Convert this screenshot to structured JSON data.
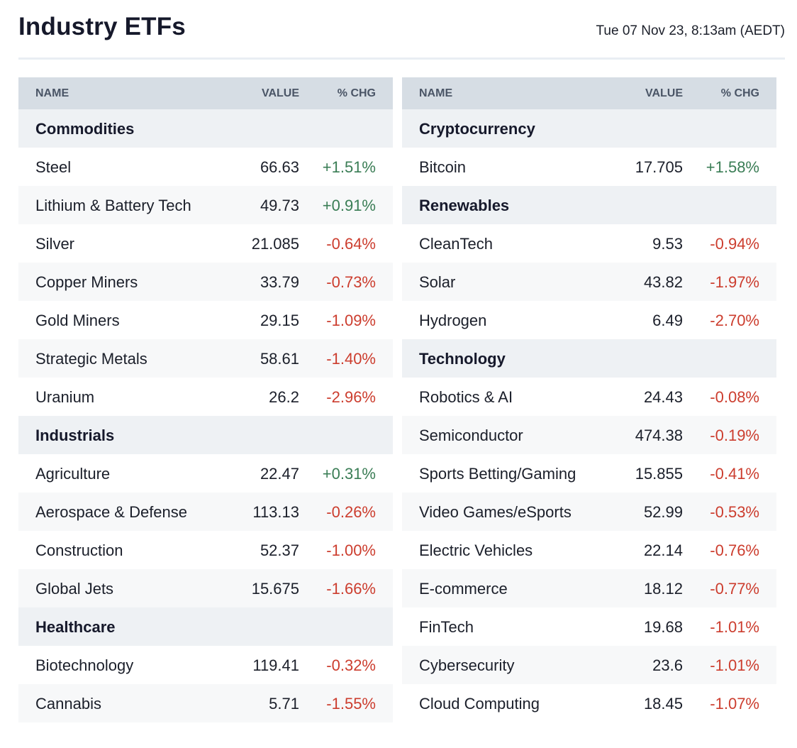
{
  "header": {
    "title": "Industry ETFs",
    "timestamp": "Tue 07 Nov 23, 8:13am (AEDT)"
  },
  "colors": {
    "positive": "#3a7d55",
    "negative": "#cc3d2e",
    "header_bg": "#d6dde4",
    "group_bg": "#eef1f4"
  },
  "columns": {
    "name": "NAME",
    "value": "VALUE",
    "chg": "% CHG"
  },
  "left_table": {
    "groups": [
      {
        "label": "Commodities",
        "rows": [
          {
            "name": "Steel",
            "value": "66.63",
            "chg": "+1.51%"
          },
          {
            "name": "Lithium & Battery Tech",
            "value": "49.73",
            "chg": "+0.91%"
          },
          {
            "name": "Silver",
            "value": "21.085",
            "chg": "-0.64%"
          },
          {
            "name": "Copper Miners",
            "value": "33.79",
            "chg": "-0.73%"
          },
          {
            "name": "Gold Miners",
            "value": "29.15",
            "chg": "-1.09%"
          },
          {
            "name": "Strategic Metals",
            "value": "58.61",
            "chg": "-1.40%"
          },
          {
            "name": "Uranium",
            "value": "26.2",
            "chg": "-2.96%"
          }
        ]
      },
      {
        "label": "Industrials",
        "rows": [
          {
            "name": "Agriculture",
            "value": "22.47",
            "chg": "+0.31%"
          },
          {
            "name": "Aerospace & Defense",
            "value": "113.13",
            "chg": "-0.26%"
          },
          {
            "name": "Construction",
            "value": "52.37",
            "chg": "-1.00%"
          },
          {
            "name": "Global Jets",
            "value": "15.675",
            "chg": "-1.66%"
          }
        ]
      },
      {
        "label": "Healthcare",
        "rows": [
          {
            "name": "Biotechnology",
            "value": "119.41",
            "chg": "-0.32%"
          },
          {
            "name": "Cannabis",
            "value": "5.71",
            "chg": "-1.55%"
          }
        ]
      }
    ]
  },
  "right_table": {
    "groups": [
      {
        "label": "Cryptocurrency",
        "rows": [
          {
            "name": "Bitcoin",
            "value": "17.705",
            "chg": "+1.58%"
          }
        ]
      },
      {
        "label": "Renewables",
        "rows": [
          {
            "name": "CleanTech",
            "value": "9.53",
            "chg": "-0.94%"
          },
          {
            "name": "Solar",
            "value": "43.82",
            "chg": "-1.97%"
          },
          {
            "name": "Hydrogen",
            "value": "6.49",
            "chg": "-2.70%"
          }
        ]
      },
      {
        "label": "Technology",
        "rows": [
          {
            "name": "Robotics & AI",
            "value": "24.43",
            "chg": "-0.08%"
          },
          {
            "name": "Semiconductor",
            "value": "474.38",
            "chg": "-0.19%"
          },
          {
            "name": "Sports Betting/Gaming",
            "value": "15.855",
            "chg": "-0.41%"
          },
          {
            "name": "Video Games/eSports",
            "value": "52.99",
            "chg": "-0.53%"
          },
          {
            "name": "Electric Vehicles",
            "value": "22.14",
            "chg": "-0.76%"
          },
          {
            "name": "E-commerce",
            "value": "18.12",
            "chg": "-0.77%"
          },
          {
            "name": "FinTech",
            "value": "19.68",
            "chg": "-1.01%"
          },
          {
            "name": "Cybersecurity",
            "value": "23.6",
            "chg": "-1.01%"
          },
          {
            "name": "Cloud Computing",
            "value": "18.45",
            "chg": "-1.07%"
          }
        ]
      }
    ]
  }
}
